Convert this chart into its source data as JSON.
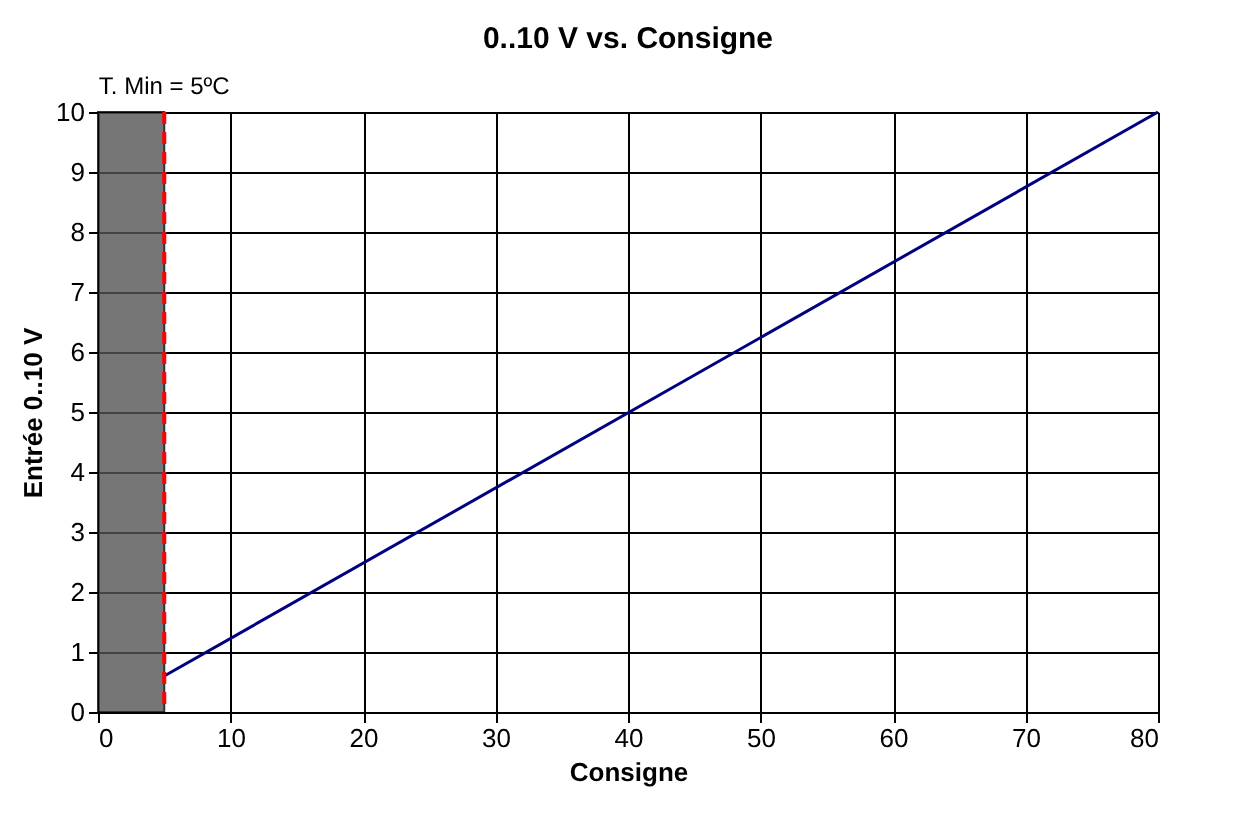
{
  "chart_data": {
    "type": "line",
    "title": "0..10 V vs. Consigne",
    "xlabel": "Consigne",
    "ylabel": "Entrée 0..10 V",
    "x": [
      5,
      80
    ],
    "series": [
      {
        "color": "#000080",
        "values": [
          0.6,
          10
        ]
      }
    ],
    "xlim": [
      0,
      80
    ],
    "xticks": [
      0,
      10,
      20,
      30,
      40,
      50,
      60,
      70,
      80
    ],
    "ylim": [
      0,
      10
    ],
    "yticks": [
      0,
      1,
      2,
      3,
      4,
      5,
      6,
      7,
      8,
      9,
      10
    ],
    "grid": true,
    "marker": "none",
    "line_style": "solid",
    "ref_lines": [
      {
        "axis": "x",
        "value": 5,
        "label": "T. Min = 5ºC",
        "color": "#ff0000",
        "line_style": "dashed"
      }
    ],
    "bands": [
      {
        "axis": "x",
        "from": 0,
        "to": 5,
        "color": "#555555"
      }
    ]
  }
}
